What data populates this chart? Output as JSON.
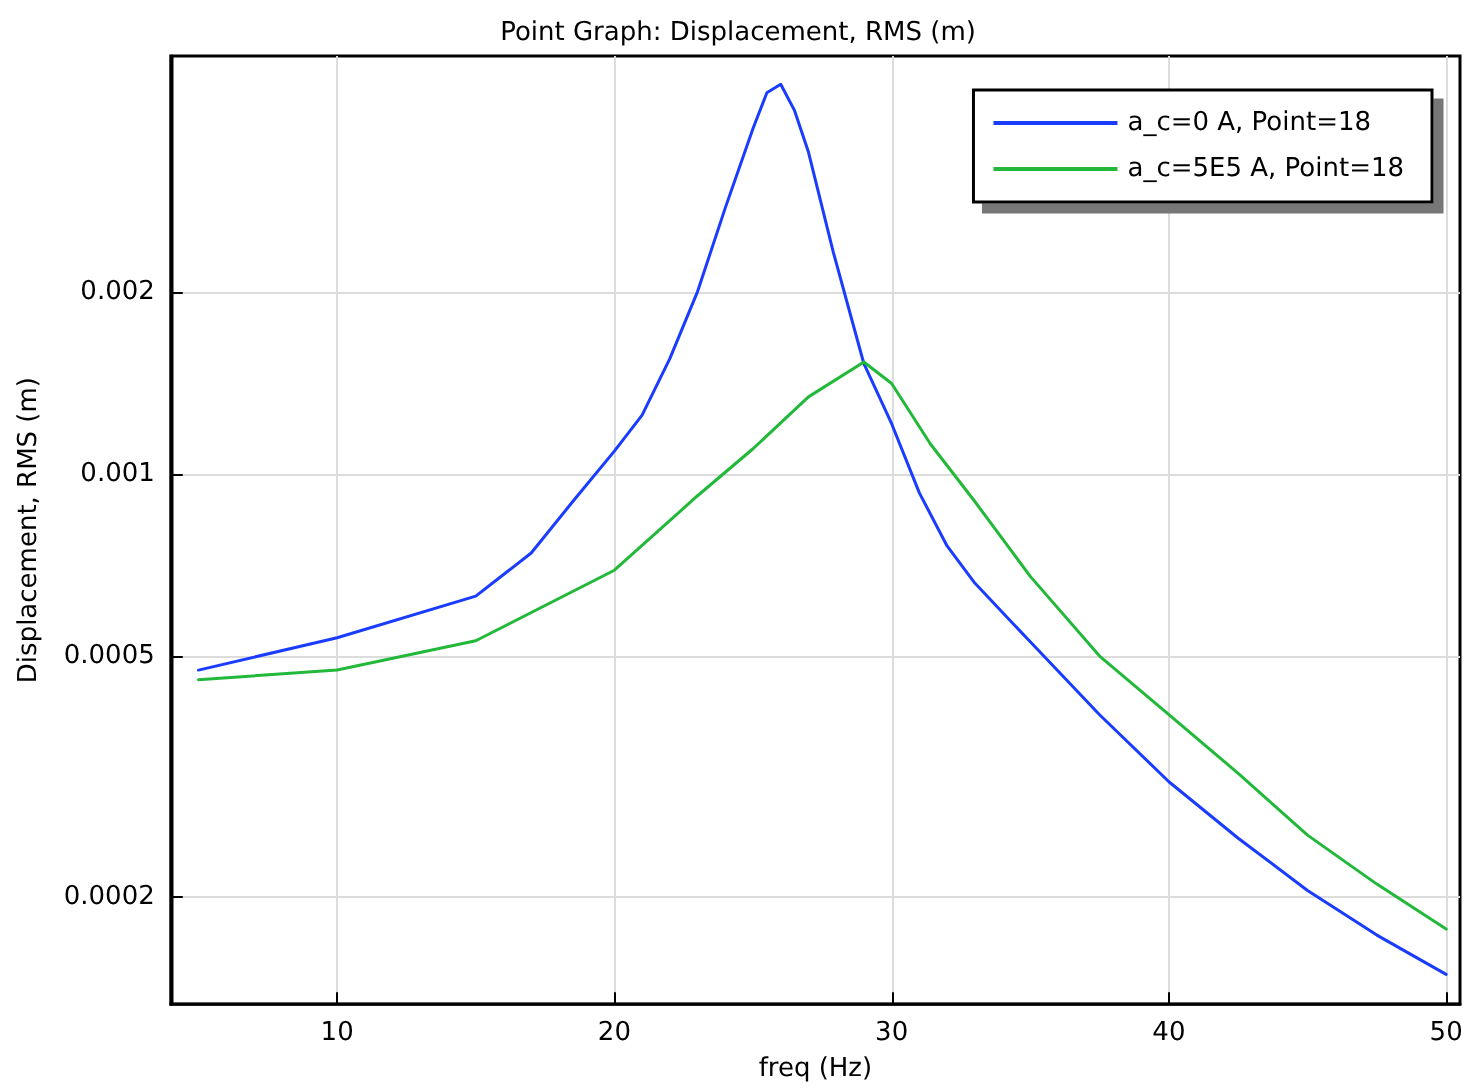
{
  "chart_data": {
    "type": "line",
    "title": "Point Graph: Displacement, RMS (m)",
    "xlabel": "freq (Hz)",
    "ylabel": "Displacement, RMS (m)",
    "xlim": [
      4,
      50.5
    ],
    "xticks": [
      10,
      20,
      30,
      40,
      50
    ],
    "ylim": [
      0.000133,
      0.0049
    ],
    "yticks": [
      0.0002,
      0.0005,
      0.001,
      0.002
    ],
    "log": "y",
    "grid": true,
    "legend": "top right",
    "marker": "none",
    "line_style": "solid",
    "series": [
      {
        "name": "a_c=0 A, Point=18",
        "color": "#1a3cff",
        "x": [
          5,
          10,
          15,
          17,
          18.5,
          20,
          21,
          22,
          23,
          24,
          25,
          25.5,
          26,
          26.5,
          27,
          27.9,
          29,
          30,
          31,
          32,
          33,
          34,
          35,
          37.5,
          40,
          42.5,
          45,
          47.5,
          50
        ],
        "values": [
          0.000474,
          0.000536,
          0.000628,
          0.00074,
          0.0009,
          0.00109,
          0.00125,
          0.00155,
          0.002,
          0.00275,
          0.00372,
          0.00426,
          0.0044,
          0.00398,
          0.0034,
          0.00232,
          0.00152,
          0.00121,
          0.00093,
          0.00076,
          0.00066,
          0.00059,
          0.000528,
          0.0004,
          0.00031,
          0.00025,
          0.000205,
          0.000173,
          0.000149
        ]
      },
      {
        "name": "a_c=5E5 A, Point=18",
        "color": "#22b83a",
        "x": [
          5,
          10,
          15,
          20,
          23,
          25,
          27,
          29,
          30,
          31.4,
          33,
          35,
          37.5,
          40,
          42.5,
          45,
          47.5,
          50
        ],
        "values": [
          0.000457,
          0.000474,
          0.00053,
          0.000693,
          0.00092,
          0.0011,
          0.00134,
          0.00153,
          0.00141,
          0.00112,
          0.0009,
          0.000677,
          0.0005,
          0.0004,
          0.00032,
          0.000253,
          0.00021,
          0.000177
        ]
      }
    ]
  }
}
